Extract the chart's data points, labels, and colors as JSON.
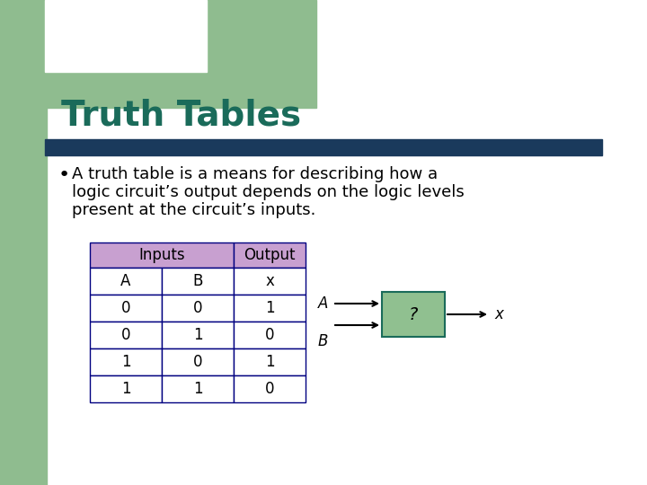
{
  "title": "Truth Tables",
  "title_color": "#1a6b5a",
  "title_fontsize": 28,
  "bg_color": "#ffffff",
  "left_bar_color": "#8fbc8f",
  "top_bar_color": "#8fbc8f",
  "divider_color": "#1a3a5c",
  "bullet_text_line1": "A truth table is a means for describing how a",
  "bullet_text_line2": "logic circuit’s output depends on the logic levels",
  "bullet_text_line3": "present at the circuit’s inputs.",
  "text_color": "#000000",
  "text_fontsize": 13,
  "table_header_bg": "#c8a0d0",
  "table_cell_bg": "#ffffff",
  "table_border_color": "#000080",
  "table_inputs_label": "Inputs",
  "table_output_label": "Output",
  "table_col_A": "A",
  "table_col_B": "B",
  "table_col_x": "x",
  "table_data": [
    [
      "0",
      "0",
      "1"
    ],
    [
      "0",
      "1",
      "0"
    ],
    [
      "1",
      "0",
      "1"
    ],
    [
      "1",
      "1",
      "0"
    ]
  ],
  "gate_box_color": "#90c090",
  "gate_box_border": "#1a6b5a",
  "gate_label": "?",
  "gate_input_A": "A",
  "gate_input_B": "B",
  "gate_output": "x"
}
